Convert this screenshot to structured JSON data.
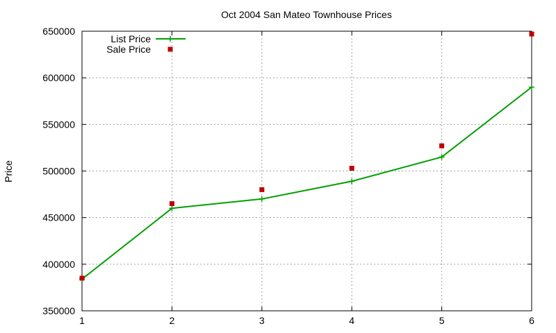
{
  "chart_data": {
    "type": "line",
    "title": "Oct 2004 San Mateo Townhouse Prices",
    "xlabel": "",
    "ylabel": "Price",
    "xlim": [
      1,
      6
    ],
    "ylim": [
      350000,
      650000
    ],
    "xticks": [
      1,
      2,
      3,
      4,
      5,
      6
    ],
    "yticks": [
      350000,
      400000,
      450000,
      500000,
      550000,
      600000,
      650000
    ],
    "grid": true,
    "legend": "top-left",
    "x": [
      1,
      2,
      3,
      4,
      5,
      6
    ],
    "series": [
      {
        "name": "List Price",
        "style": "linespoints",
        "marker": "plus",
        "color": "#00a000",
        "values": [
          384000,
          460000,
          470000,
          489000,
          515000,
          590000
        ]
      },
      {
        "name": "Sale Price",
        "style": "points",
        "marker": "square",
        "color": "#c00000",
        "values": [
          385000,
          465000,
          480000,
          503000,
          527000,
          647000
        ]
      }
    ]
  }
}
